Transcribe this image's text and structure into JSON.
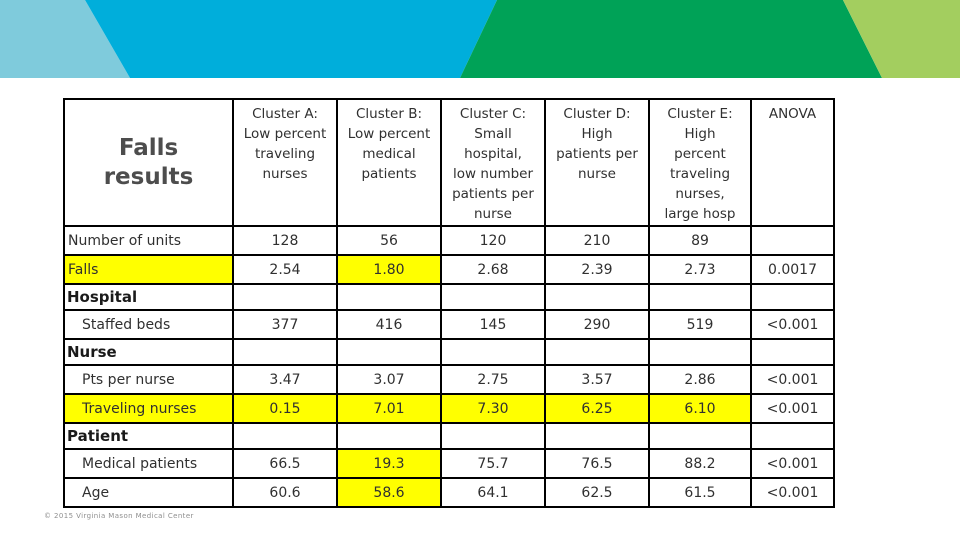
{
  "colors": {
    "highlight": "#ffff00",
    "banner_light_blue": "#7fcbdc",
    "banner_bright_blue": "#00aedb",
    "banner_green": "#00a257",
    "banner_light_green": "#a3ce5f",
    "text": "#303030",
    "border": "#000000"
  },
  "slide": {
    "footer": "© 2015 Virginia Mason Medical Center"
  },
  "table": {
    "title": "Falls\nresults",
    "columns": [
      "Cluster A:\nLow percent\ntraveling\nnurses",
      "Cluster B:\nLow percent\nmedical\npatients",
      "Cluster C:\nSmall\nhospital,\nlow number\npatients per\nnurse",
      "Cluster D:\nHigh\npatients per\nnurse",
      "Cluster E:\nHigh\npercent\ntraveling\nnurses,\nlarge hosp",
      "ANOVA"
    ],
    "rows": [
      {
        "label": "Number of units",
        "type": "data",
        "indent": false,
        "label_highlight": false,
        "cells": [
          {
            "text": "128"
          },
          {
            "text": "56"
          },
          {
            "text": "120"
          },
          {
            "text": "210"
          },
          {
            "text": "89"
          },
          {
            "text": ""
          }
        ]
      },
      {
        "label": "Falls",
        "type": "data",
        "indent": false,
        "label_highlight": true,
        "cells": [
          {
            "text": "2.54"
          },
          {
            "text": "1.80",
            "highlight": true
          },
          {
            "text": "2.68"
          },
          {
            "text": "2.39"
          },
          {
            "text": "2.73"
          },
          {
            "text": "0.0017"
          }
        ]
      },
      {
        "label": "Hospital",
        "type": "section",
        "indent": false,
        "label_highlight": false,
        "cells": [
          {
            "text": ""
          },
          {
            "text": ""
          },
          {
            "text": ""
          },
          {
            "text": ""
          },
          {
            "text": ""
          },
          {
            "text": ""
          }
        ]
      },
      {
        "label": "Staffed beds",
        "type": "data",
        "indent": true,
        "label_highlight": false,
        "cells": [
          {
            "text": "377"
          },
          {
            "text": "416"
          },
          {
            "text": "145"
          },
          {
            "text": "290"
          },
          {
            "text": "519"
          },
          {
            "text": "<0.001"
          }
        ]
      },
      {
        "label": "Nurse",
        "type": "section",
        "indent": false,
        "label_highlight": false,
        "cells": [
          {
            "text": ""
          },
          {
            "text": ""
          },
          {
            "text": ""
          },
          {
            "text": ""
          },
          {
            "text": ""
          },
          {
            "text": ""
          }
        ]
      },
      {
        "label": "Pts per nurse",
        "type": "data",
        "indent": true,
        "label_highlight": false,
        "cells": [
          {
            "text": "3.47"
          },
          {
            "text": "3.07"
          },
          {
            "text": "2.75"
          },
          {
            "text": "3.57"
          },
          {
            "text": "2.86"
          },
          {
            "text": "<0.001"
          }
        ]
      },
      {
        "label": "Traveling nurses",
        "type": "data",
        "indent": true,
        "label_highlight": true,
        "cells": [
          {
            "text": "0.15",
            "highlight": true
          },
          {
            "text": "7.01",
            "highlight": true
          },
          {
            "text": "7.30",
            "highlight": true
          },
          {
            "text": "6.25",
            "highlight": true
          },
          {
            "text": "6.10",
            "highlight": true
          },
          {
            "text": "<0.001"
          }
        ]
      },
      {
        "label": "Patient",
        "type": "section",
        "indent": false,
        "label_highlight": false,
        "cells": [
          {
            "text": ""
          },
          {
            "text": ""
          },
          {
            "text": ""
          },
          {
            "text": ""
          },
          {
            "text": ""
          },
          {
            "text": ""
          }
        ]
      },
      {
        "label": "Medical patients",
        "type": "data",
        "indent": true,
        "label_highlight": false,
        "cells": [
          {
            "text": "66.5"
          },
          {
            "text": "19.3",
            "highlight": true
          },
          {
            "text": "75.7"
          },
          {
            "text": "76.5"
          },
          {
            "text": "88.2"
          },
          {
            "text": "<0.001"
          }
        ]
      },
      {
        "label": "Age",
        "type": "data",
        "indent": true,
        "label_highlight": false,
        "cells": [
          {
            "text": "60.6"
          },
          {
            "text": "58.6",
            "highlight": true
          },
          {
            "text": "64.1"
          },
          {
            "text": "62.5"
          },
          {
            "text": "61.5"
          },
          {
            "text": "<0.001"
          }
        ]
      }
    ]
  }
}
